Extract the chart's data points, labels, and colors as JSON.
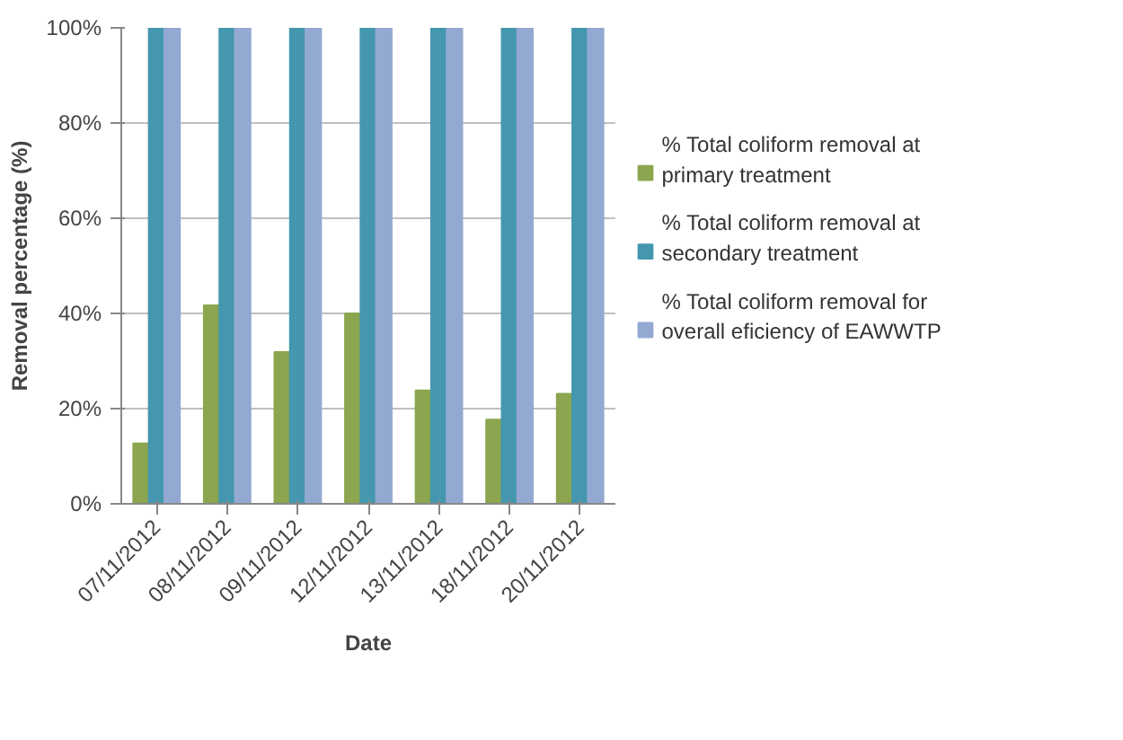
{
  "chart_data": {
    "type": "bar",
    "xlabel": "Date",
    "ylabel": "Removal percentage (%)",
    "categories": [
      "07/11/2012",
      "08/11/2012",
      "09/11/2012",
      "12/11/2012",
      "13/11/2012",
      "18/11/2012",
      "20/11/2012"
    ],
    "series": [
      {
        "name": "% Total coliform removal at primary treatment",
        "color": "#8ba64f",
        "values": [
          12.7,
          41.7,
          31.9,
          40.0,
          23.8,
          17.7,
          23.1
        ]
      },
      {
        "name": "% Total coliform removal at secondary treatment",
        "color": "#4497ae",
        "values": [
          100,
          100,
          100,
          100,
          100,
          100,
          100
        ]
      },
      {
        "name": "% Total coliform removal for overall eficiency of EAWWTP",
        "color": "#93a9d2",
        "values": [
          100,
          100,
          100,
          100,
          100,
          100,
          100
        ]
      }
    ],
    "ylim": [
      0,
      100
    ],
    "yticks": [
      {
        "value": 0,
        "label": "0%"
      },
      {
        "value": 20,
        "label": "20%"
      },
      {
        "value": 40,
        "label": "40%"
      },
      {
        "value": 60,
        "label": "60%"
      },
      {
        "value": 80,
        "label": "80%"
      },
      {
        "value": 100,
        "label": "100%"
      }
    ],
    "grid": "y",
    "legend": "right"
  }
}
